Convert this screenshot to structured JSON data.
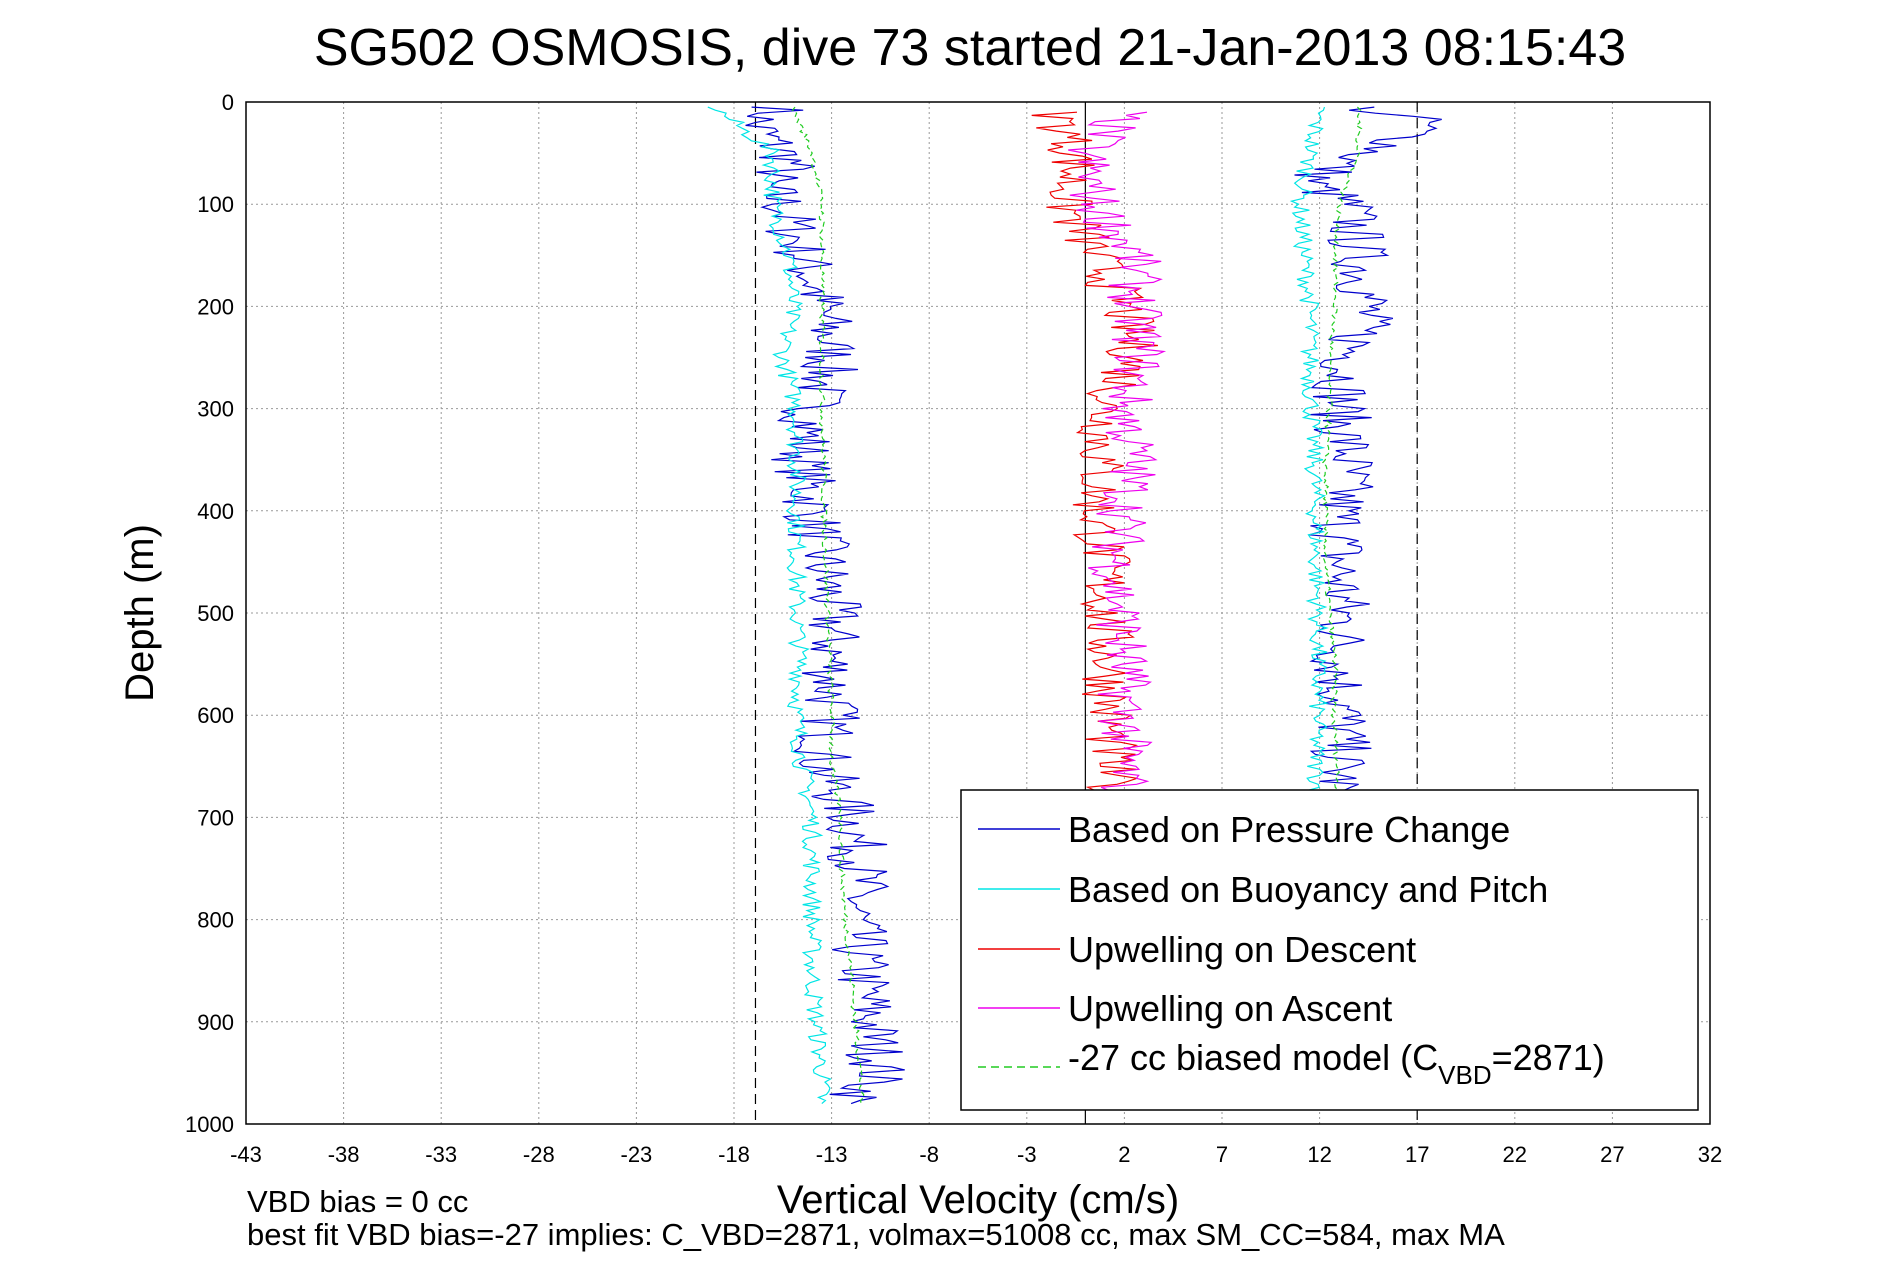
{
  "chart_data": {
    "type": "line",
    "title": "SG502 OSMOSIS, dive 73 started 21-Jan-2013 08:15:43",
    "xlabel": "Vertical Velocity (cm/s)",
    "ylabel": "Depth (m)",
    "xlim": [
      -43,
      32
    ],
    "ylim": [
      0,
      1000
    ],
    "y_reversed": true,
    "grid": true,
    "xticks": [
      -43,
      -38,
      -33,
      -28,
      -23,
      -18,
      -13,
      -8,
      -3,
      2,
      7,
      12,
      17,
      22,
      27,
      32
    ],
    "yticks": [
      0,
      100,
      200,
      300,
      400,
      500,
      600,
      700,
      800,
      900,
      1000
    ],
    "reference_lines": {
      "solid_x": [
        0
      ],
      "dashed_x": [
        -16.9,
        17
      ]
    },
    "legend_position": "bottom-right",
    "series": [
      {
        "name": "Based on Pressure Change",
        "color": "#0000cc",
        "style": "solid",
        "points": [
          {
            "depth": 5,
            "v": -15.5,
            "v2": 14.0
          },
          {
            "depth": 20,
            "v": -17.0,
            "v2": 17.5
          },
          {
            "depth": 40,
            "v": -16.0,
            "v2": 16.0
          },
          {
            "depth": 60,
            "v": -15.0,
            "v2": 13.0
          },
          {
            "depth": 80,
            "v": -16.5,
            "v2": 11.5
          },
          {
            "depth": 100,
            "v": -15.5,
            "v2": 13.5
          },
          {
            "depth": 150,
            "v": -14.5,
            "v2": 14.0
          },
          {
            "depth": 200,
            "v": -13.5,
            "v2": 14.5
          },
          {
            "depth": 250,
            "v": -13.0,
            "v2": 13.5
          },
          {
            "depth": 300,
            "v": -14.0,
            "v2": 13.0
          },
          {
            "depth": 350,
            "v": -14.5,
            "v2": 13.5
          },
          {
            "depth": 400,
            "v": -14.0,
            "v2": 13.0
          },
          {
            "depth": 450,
            "v": -13.5,
            "v2": 13.0
          },
          {
            "depth": 500,
            "v": -13.0,
            "v2": 13.2
          },
          {
            "depth": 550,
            "v": -13.0,
            "v2": 13.0
          },
          {
            "depth": 600,
            "v": -13.0,
            "v2": 13.2
          },
          {
            "depth": 650,
            "v": -13.5,
            "v2": 13.0
          },
          {
            "depth": 700,
            "v": -12.0,
            "v2": 13.0
          },
          {
            "depth": 750,
            "v": -11.5,
            "v2": 13.0
          },
          {
            "depth": 800,
            "v": -11.8,
            "v2": 13.0
          },
          {
            "depth": 850,
            "v": -11.5,
            "v2": 13.0
          },
          {
            "depth": 900,
            "v": -11.0,
            "v2": 13.0
          },
          {
            "depth": 950,
            "v": -10.5,
            "v2": 13.0
          },
          {
            "depth": 980,
            "v": -12.0,
            "v2": 12.5
          }
        ]
      },
      {
        "name": "Based on Buoyancy and Pitch",
        "color": "#00e5e5",
        "style": "solid",
        "points": [
          {
            "depth": 5,
            "v": -19.0,
            "v2": 12.0
          },
          {
            "depth": 50,
            "v": -16.0,
            "v2": 11.5
          },
          {
            "depth": 100,
            "v": -16.0,
            "v2": 11.0
          },
          {
            "depth": 150,
            "v": -15.2,
            "v2": 11.2
          },
          {
            "depth": 200,
            "v": -15.0,
            "v2": 11.5
          },
          {
            "depth": 250,
            "v": -15.5,
            "v2": 11.5
          },
          {
            "depth": 300,
            "v": -14.8,
            "v2": 11.6
          },
          {
            "depth": 350,
            "v": -14.8,
            "v2": 11.7
          },
          {
            "depth": 400,
            "v": -14.8,
            "v2": 11.8
          },
          {
            "depth": 450,
            "v": -14.8,
            "v2": 11.8
          },
          {
            "depth": 500,
            "v": -14.8,
            "v2": 11.9
          },
          {
            "depth": 550,
            "v": -14.6,
            "v2": 11.9
          },
          {
            "depth": 600,
            "v": -14.8,
            "v2": 11.9
          },
          {
            "depth": 650,
            "v": -14.5,
            "v2": 11.8
          },
          {
            "depth": 700,
            "v": -14.0,
            "v2": 12.0
          },
          {
            "depth": 750,
            "v": -14.0,
            "v2": 12.0
          },
          {
            "depth": 800,
            "v": -14.0,
            "v2": 12.0
          },
          {
            "depth": 850,
            "v": -14.0,
            "v2": 12.0
          },
          {
            "depth": 900,
            "v": -13.8,
            "v2": 12.0
          },
          {
            "depth": 950,
            "v": -13.5,
            "v2": 12.0
          },
          {
            "depth": 980,
            "v": -13.5,
            "v2": 12.0
          }
        ]
      },
      {
        "name": "Upwelling on Descent",
        "color": "#ee0000",
        "style": "solid",
        "points": [
          {
            "depth": 10,
            "v": -1.5
          },
          {
            "depth": 50,
            "v": -0.5
          },
          {
            "depth": 100,
            "v": -1.0
          },
          {
            "depth": 150,
            "v": 0.5
          },
          {
            "depth": 200,
            "v": 2.0
          },
          {
            "depth": 250,
            "v": 2.5
          },
          {
            "depth": 300,
            "v": 1.0
          },
          {
            "depth": 350,
            "v": 0.8
          },
          {
            "depth": 400,
            "v": 0.5
          },
          {
            "depth": 450,
            "v": 1.0
          },
          {
            "depth": 500,
            "v": 1.0
          },
          {
            "depth": 550,
            "v": 1.2
          },
          {
            "depth": 600,
            "v": 1.2
          },
          {
            "depth": 650,
            "v": 1.3
          },
          {
            "depth": 700,
            "v": 1.2
          },
          {
            "depth": 750,
            "v": 1.0
          },
          {
            "depth": 800,
            "v": 1.1
          },
          {
            "depth": 850,
            "v": 1.2
          },
          {
            "depth": 900,
            "v": 1.2
          },
          {
            "depth": 950,
            "v": 1.2
          },
          {
            "depth": 985,
            "v": 1.5
          }
        ]
      },
      {
        "name": "Upwelling on Ascent",
        "color": "#ee00ee",
        "style": "solid",
        "points": [
          {
            "depth": 10,
            "v": 2.0
          },
          {
            "depth": 50,
            "v": 0.0
          },
          {
            "depth": 100,
            "v": 0.5
          },
          {
            "depth": 150,
            "v": 2.5
          },
          {
            "depth": 200,
            "v": 2.5
          },
          {
            "depth": 250,
            "v": 2.8
          },
          {
            "depth": 300,
            "v": 2.0
          },
          {
            "depth": 350,
            "v": 2.5
          },
          {
            "depth": 400,
            "v": 2.0
          },
          {
            "depth": 450,
            "v": 1.5
          },
          {
            "depth": 500,
            "v": 1.8
          },
          {
            "depth": 550,
            "v": 2.0
          },
          {
            "depth": 600,
            "v": 2.0
          },
          {
            "depth": 650,
            "v": 2.0
          },
          {
            "depth": 700,
            "v": 2.0
          }
        ]
      },
      {
        "name": "-27 cc biased model (C<sub>VBD</sub>=2871)",
        "color": "#22cc22",
        "style": "dashed",
        "points": [
          {
            "depth": 5,
            "v": -15.0,
            "v2": 14.0
          },
          {
            "depth": 50,
            "v": -14.0,
            "v2": 14.0
          },
          {
            "depth": 100,
            "v": -13.5,
            "v2": 13.0
          },
          {
            "depth": 150,
            "v": -13.5,
            "v2": 12.8
          },
          {
            "depth": 200,
            "v": -13.5,
            "v2": 12.8
          },
          {
            "depth": 250,
            "v": -13.5,
            "v2": 12.5
          },
          {
            "depth": 300,
            "v": -13.5,
            "v2": 12.5
          },
          {
            "depth": 350,
            "v": -13.4,
            "v2": 12.3
          },
          {
            "depth": 400,
            "v": -13.4,
            "v2": 12.3
          },
          {
            "depth": 450,
            "v": -13.3,
            "v2": 12.3
          },
          {
            "depth": 500,
            "v": -13.2,
            "v2": 12.5
          },
          {
            "depth": 550,
            "v": -13.1,
            "v2": 12.8
          },
          {
            "depth": 600,
            "v": -13.0,
            "v2": 12.7
          },
          {
            "depth": 650,
            "v": -13.0,
            "v2": 12.9
          },
          {
            "depth": 700,
            "v": -12.5,
            "v2": 12.9
          },
          {
            "depth": 750,
            "v": -12.5,
            "v2": 13.0
          },
          {
            "depth": 800,
            "v": -12.3,
            "v2": 13.0
          },
          {
            "depth": 850,
            "v": -12.0,
            "v2": 13.0
          },
          {
            "depth": 900,
            "v": -11.8,
            "v2": 13.0
          },
          {
            "depth": 950,
            "v": -11.5,
            "v2": 13.0
          },
          {
            "depth": 980,
            "v": -11.5,
            "v2": 13.0
          }
        ]
      }
    ],
    "legend_labels": [
      "Based on Pressure Change",
      "Based on Buoyancy and Pitch",
      "Upwelling on Descent",
      "Upwelling on Ascent",
      "-27 cc biased model (C",
      "VBD",
      "=2871)"
    ],
    "footnotes": [
      "VBD bias = 0 cc",
      "best fit VBD bias=-27 implies: C_VBD=2871, volmax=51008 cc, max SM_CC=584, max MA"
    ]
  }
}
